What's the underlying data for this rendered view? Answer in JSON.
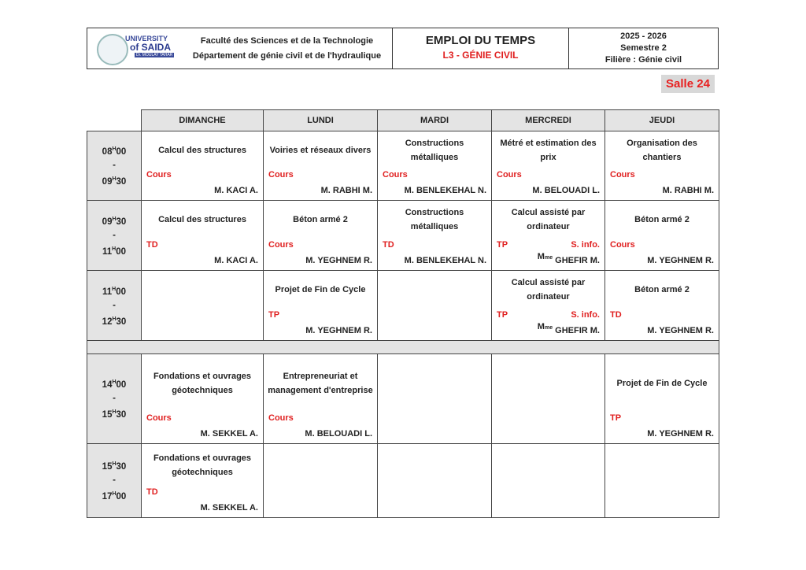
{
  "header": {
    "logo_text": [
      "UNIVERSITY",
      "of SAIDA",
      "Dr. MOULAY TAHAR"
    ],
    "faculty": "Faculté des Sciences et de la Technologie",
    "department": "Département de génie civil et de l'hydraulique",
    "title": "EMPLOI DU TEMPS",
    "subtitle": "L3 - GÉNIE CIVIL",
    "year": "2025 - 2026",
    "semester": "Semestre 2",
    "filiere": "Filière : Génie civil"
  },
  "room": "Salle 24",
  "days": [
    "DIMANCHE",
    "LUNDI",
    "MARDI",
    "MERCREDI",
    "JEUDI"
  ],
  "rows": [
    {
      "start": [
        "08",
        "H",
        "00"
      ],
      "end": [
        "09",
        "H",
        "30"
      ],
      "cells": [
        {
          "subject": "Calcul des structures",
          "type": "Cours",
          "title": "M.",
          "teacher": "KACI A."
        },
        {
          "subject": "Voiries et réseaux divers",
          "type": "Cours",
          "title": "M.",
          "teacher": "RABHI M."
        },
        {
          "subject": "Constructions métalliques",
          "type": "Cours",
          "title": "M.",
          "teacher": "BENLEKEHAL N."
        },
        {
          "subject": "Métré et estimation des prix",
          "type": "Cours",
          "title": "M.",
          "teacher": "BELOUADI L."
        },
        {
          "subject": "Organisation des chantiers",
          "type": "Cours",
          "title": "M.",
          "teacher": "RABHI M."
        }
      ]
    },
    {
      "start": [
        "09",
        "H",
        "30"
      ],
      "end": [
        "11",
        "H",
        "00"
      ],
      "cells": [
        {
          "subject": "Calcul des structures",
          "type": "TD",
          "title": "M.",
          "teacher": "KACI A."
        },
        {
          "subject": "Béton armé 2",
          "type": "Cours",
          "title": "M.",
          "teacher": "YEGHNEM R."
        },
        {
          "subject": "Constructions métalliques",
          "type": "TD",
          "title": "M.",
          "teacher": "BENLEKEHAL N."
        },
        {
          "subject": "Calcul assisté par ordinateur",
          "type": "TP",
          "place": "S. info.",
          "title": "Mme",
          "teacher": "GHEFIR M."
        },
        {
          "subject": "Béton armé 2",
          "type": "Cours",
          "title": "M.",
          "teacher": "YEGHNEM R."
        }
      ]
    },
    {
      "start": [
        "11",
        "H",
        "00"
      ],
      "end": [
        "12",
        "H",
        "30"
      ],
      "cells": [
        null,
        {
          "subject": "Projet de Fin de Cycle",
          "type": "TP",
          "title": "M.",
          "teacher": "YEGHNEM R."
        },
        null,
        {
          "subject": "Calcul assisté par ordinateur",
          "type": "TP",
          "place": "S. info.",
          "title": "Mme",
          "teacher": "GHEFIR M."
        },
        {
          "subject": "Béton armé 2",
          "type": "TD",
          "title": "M.",
          "teacher": "YEGHNEM R."
        }
      ]
    },
    {
      "break": true
    },
    {
      "start": [
        "14",
        "H",
        "00"
      ],
      "end": [
        "15",
        "H",
        "30"
      ],
      "cells": [
        {
          "subject": "Fondations et ouvrages géotechniques",
          "type": "Cours",
          "title": "M.",
          "teacher": "SEKKEL A."
        },
        {
          "subject": "Entrepreneuriat et management d'entreprise",
          "type": "Cours",
          "title": "M.",
          "teacher": "BELOUADI L."
        },
        null,
        null,
        {
          "subject": "Projet de Fin de Cycle",
          "type": "TP",
          "title": "M.",
          "teacher": "YEGHNEM R."
        }
      ]
    },
    {
      "start": [
        "15",
        "H",
        "30"
      ],
      "end": [
        "17",
        "H",
        "00"
      ],
      "cells": [
        {
          "subject": "Fondations et ouvrages géotechniques",
          "type": "TD",
          "title": "M.",
          "teacher": "SEKKEL A."
        },
        null,
        null,
        null,
        null
      ]
    }
  ],
  "colors": {
    "accent_red": "#e02020",
    "header_grey": "#e4e4e4"
  }
}
